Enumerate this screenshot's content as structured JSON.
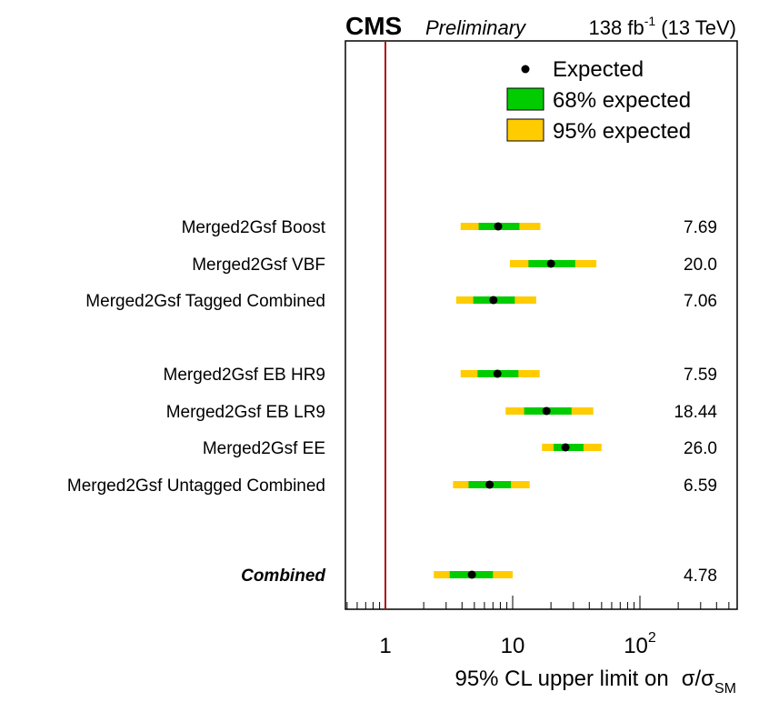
{
  "header": {
    "experiment": "CMS",
    "status": "Preliminary",
    "lumi_value": "138 fb",
    "lumi_exp": "-1",
    "energy": " (13 TeV)"
  },
  "legend": {
    "placement": "top-right",
    "expected": "Expected",
    "band68": "68% expected",
    "band95": "95% expected"
  },
  "colors": {
    "band68": "#00cc00",
    "band95": "#ffcc00",
    "marker": "#000000",
    "sm_line": "#aa1111"
  },
  "chart_data": {
    "type": "scatter",
    "orientation": "horizontal",
    "x_scale": "log",
    "xlim": [
      0.45,
      550
    ],
    "xlabel_main": "95% CL upper limit on",
    "xlabel_sigma": "σ/σ",
    "xlabel_sub": "SM",
    "ticks": [
      {
        "value": 1,
        "label": "1",
        "exp": ""
      },
      {
        "value": 10,
        "label": "10",
        "exp": ""
      },
      {
        "value": 100,
        "label": "10",
        "exp": "2"
      }
    ],
    "reference_line": 1,
    "grid": false,
    "rows": [
      {
        "label": "Merged2Gsf Boost",
        "bold": false,
        "expected": 7.69,
        "value_text": "7.69",
        "band68": [
          5.4,
          11.3
        ],
        "band95": [
          3.9,
          16.5
        ]
      },
      {
        "label": "Merged2Gsf VBF",
        "bold": false,
        "expected": 20.0,
        "value_text": "20.0",
        "band68": [
          13.3,
          31.0
        ],
        "band95": [
          9.5,
          45.5
        ]
      },
      {
        "label": "Merged2Gsf Tagged Combined",
        "bold": false,
        "expected": 7.06,
        "value_text": "7.06",
        "band68": [
          4.9,
          10.4
        ],
        "band95": [
          3.6,
          15.3
        ]
      },
      {
        "label": "Merged2Gsf EB HR9",
        "bold": false,
        "expected": 7.59,
        "value_text": "7.59",
        "band68": [
          5.3,
          11.1
        ],
        "band95": [
          3.9,
          16.3
        ]
      },
      {
        "label": "Merged2Gsf EB LR9",
        "bold": false,
        "expected": 18.44,
        "value_text": "18.44",
        "band68": [
          12.3,
          29.0
        ],
        "band95": [
          8.8,
          43.0
        ]
      },
      {
        "label": "Merged2Gsf EE",
        "bold": false,
        "expected": 26.0,
        "value_text": "26.0",
        "band68": [
          21.0,
          36.0
        ],
        "band95": [
          17.0,
          50.0
        ]
      },
      {
        "label": "Merged2Gsf Untagged Combined",
        "bold": false,
        "expected": 6.59,
        "value_text": "6.59",
        "band68": [
          4.5,
          9.7
        ],
        "band95": [
          3.4,
          13.6
        ]
      },
      {
        "label": "Combined",
        "bold": true,
        "expected": 4.78,
        "value_text": "4.78",
        "band68": [
          3.2,
          7.0
        ],
        "band95": [
          2.4,
          10.0
        ]
      }
    ]
  }
}
